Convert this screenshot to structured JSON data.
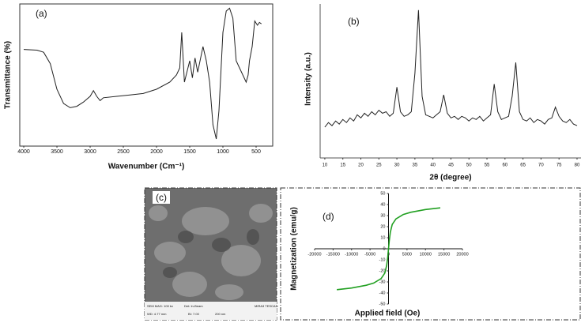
{
  "chart_data": [
    {
      "type": "line",
      "label": "(a)",
      "xlabel": "Wavenumber (Cm⁻¹)",
      "ylabel": "Transmittance (%)",
      "color": "#222222",
      "x": [
        4000,
        3800,
        3700,
        3600,
        3500,
        3400,
        3300,
        3200,
        3100,
        3000,
        2950,
        2900,
        2850,
        2800,
        2600,
        2400,
        2200,
        2000,
        1800,
        1700,
        1650,
        1620,
        1580,
        1500,
        1460,
        1420,
        1380,
        1300,
        1250,
        1200,
        1150,
        1100,
        1060,
        1000,
        950,
        900,
        850,
        800,
        750,
        700,
        650,
        620,
        600,
        560,
        520,
        480,
        450,
        420
      ],
      "values": [
        68,
        67.5,
        66,
        58,
        40,
        30,
        27,
        28,
        31,
        35,
        39,
        35,
        32,
        34,
        35,
        36,
        37,
        40,
        45,
        50,
        55,
        80,
        45,
        60,
        48,
        62,
        52,
        70,
        60,
        45,
        15,
        5,
        25,
        80,
        95,
        97,
        90,
        60,
        55,
        50,
        45,
        50,
        60,
        70,
        88,
        85,
        87,
        86
      ],
      "xlim": [
        4060,
        250
      ],
      "ylim": [
        0,
        100
      ],
      "xticks": [
        4000,
        3500,
        3000,
        2500,
        2000,
        1500,
        1000,
        500
      ]
    },
    {
      "type": "line",
      "label": "(b)",
      "xlabel": "2θ (degree)",
      "ylabel": "Intensity (a.u.)",
      "color": "#222222",
      "x": [
        10,
        11,
        12,
        13,
        14,
        15,
        16,
        17,
        18,
        19,
        20,
        21,
        22,
        23,
        24,
        25,
        26,
        27,
        28,
        29,
        30,
        31,
        32,
        33,
        34,
        35,
        36,
        37,
        38,
        39,
        40,
        41,
        42,
        43,
        44,
        45,
        46,
        47,
        48,
        49,
        50,
        51,
        52,
        53,
        54,
        55,
        56,
        57,
        58,
        59,
        60,
        61,
        62,
        63,
        64,
        65,
        66,
        67,
        68,
        69,
        70,
        71,
        72,
        73,
        74,
        75,
        76,
        77,
        78,
        79,
        80
      ],
      "values": [
        20,
        23,
        21,
        24,
        22,
        25,
        23,
        26,
        24,
        28,
        26,
        29,
        27,
        30,
        28,
        31,
        29,
        30,
        27,
        29,
        46,
        30,
        27,
        28,
        30,
        55,
        96,
        40,
        28,
        27,
        26,
        28,
        30,
        41,
        29,
        26,
        27,
        25,
        27,
        26,
        24,
        26,
        25,
        27,
        24,
        26,
        28,
        48,
        30,
        25,
        26,
        27,
        40,
        62,
        30,
        25,
        24,
        26,
        23,
        25,
        24,
        22,
        25,
        26,
        33,
        27,
        24,
        23,
        25,
        22,
        21
      ],
      "xlim": [
        8.7,
        81.1
      ],
      "ylim": [
        0,
        100
      ],
      "xticks": [
        10,
        15,
        20,
        25,
        30,
        35,
        40,
        45,
        50,
        55,
        60,
        65,
        70,
        75,
        80
      ]
    },
    {
      "type": "line",
      "label": "(d)",
      "xlabel": "Applied field (Oe)",
      "ylabel": "Magnetization (emu/g)",
      "color": "#22a022",
      "x": [
        -14000,
        -10000,
        -6000,
        -4000,
        -2000,
        -1000,
        -500,
        -200,
        0,
        200,
        500,
        1000,
        2000,
        4000,
        6000,
        10000,
        14000
      ],
      "values": [
        -37,
        -35.5,
        -33,
        -31,
        -27,
        -22,
        -15,
        -7,
        0,
        7,
        15,
        22,
        27,
        31,
        33,
        35.5,
        37
      ],
      "xlim": [
        -20000,
        20000
      ],
      "ylim": [
        -50,
        50
      ],
      "xticks": [
        -20000,
        -15000,
        -10000,
        -5000,
        0,
        5000,
        10000,
        15000,
        20000
      ],
      "yticks": [
        -50,
        -40,
        -30,
        -20,
        -10,
        0,
        10,
        20,
        30,
        40,
        50
      ]
    }
  ],
  "image": {
    "label": "(c)",
    "info": [
      "SEM MAG: 100 kx",
      "Det: In-Beam",
      "MIRA3 TESCAN",
      "WD: 4.77 mm",
      "BI: 7.00",
      "200 nm"
    ]
  }
}
